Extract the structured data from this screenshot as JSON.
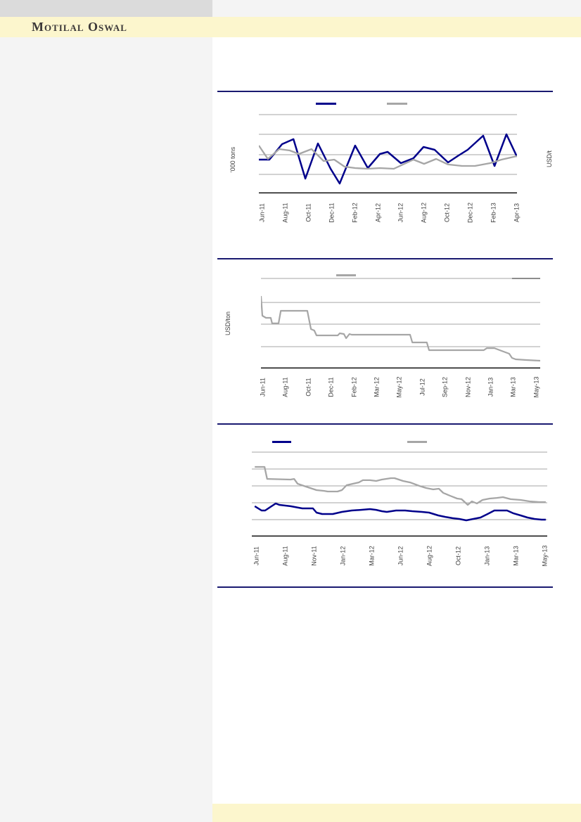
{
  "header": {
    "brand": "Motilal Oswal"
  },
  "colors": {
    "brand_band_yellow": "#fcf6cd",
    "sidebar_gray": "#f4f4f4",
    "top_strip_gray": "#dbdbdb",
    "divider_navy": "#191970",
    "series_navy": "#00008b",
    "series_gray": "#a6a6a6",
    "gridline_gray": "#a6a6a6",
    "axis_black": "#000000",
    "tick_text": "#3f3f3f"
  },
  "chart_data": [
    {
      "type": "line",
      "title": "",
      "ylabel_left": "'000 tons",
      "ylabel_right": "USD/t",
      "ylim": [
        0,
        100
      ],
      "grid": true,
      "legend_position": "top-center",
      "gridlines_pct": [
        97.4,
        73.0,
        47.8,
        23.5
      ],
      "x_labels": [
        "Jun-11",
        "Aug-11",
        "Oct-11",
        "Dec-11",
        "Feb-12",
        "Apr-12",
        "Jun-12",
        "Aug-12",
        "Oct-12",
        "Dec-12",
        "Feb-13",
        "Apr-13"
      ],
      "series": [
        {
          "name": "navy-series",
          "color": "#00008b",
          "width": 2.5,
          "x": [
            0,
            4.1,
            9.0,
            13.4,
            18.0,
            22.9,
            27.8,
            31.3,
            37.3,
            42.2,
            46.9,
            49.9,
            55.0,
            59.9,
            63.8,
            68.1,
            73.3,
            77.4,
            80.9,
            86.9,
            91.3,
            95.9,
            100
          ],
          "values": [
            41.7,
            41.7,
            60.9,
            67.0,
            18.3,
            61.7,
            30.4,
            12.2,
            59.1,
            31.3,
            48.7,
            51.3,
            37.4,
            43.5,
            57.4,
            53.9,
            38.3,
            47.0,
            53.9,
            71.3,
            33.9,
            73.0,
            45.2
          ]
        },
        {
          "name": "gray-series",
          "color": "#a6a6a6",
          "width": 2.3,
          "x": [
            0,
            3.5,
            7.9,
            12.0,
            15.5,
            20.4,
            25.1,
            29.2,
            33.2,
            37.3,
            42.2,
            46.9,
            52.3,
            59.9,
            64.0,
            68.7,
            73.3,
            78.7,
            83.7,
            89.6,
            94.0,
            100
          ],
          "values": [
            59.1,
            42.6,
            54.8,
            53.0,
            48.7,
            54.8,
            40.0,
            41.7,
            33.0,
            31.3,
            30.4,
            31.3,
            30.4,
            41.7,
            36.5,
            42.6,
            35.7,
            33.9,
            33.9,
            37.4,
            41.7,
            46.1
          ]
        }
      ]
    },
    {
      "type": "line",
      "title": "",
      "ylabel_left": "USD/ton",
      "ylabel_right": "",
      "ylim": [
        0,
        100
      ],
      "grid": true,
      "legend_position": "top-center",
      "gridlines_pct": [
        95.5,
        70.1,
        47.0,
        23.1
      ],
      "dark_grid_segment": {
        "pct": 95.5,
        "x_from": 89.9,
        "x_to": 100,
        "color": "#8c8c8c"
      },
      "x_labels": [
        "Jun-11",
        "Aug-11",
        "Oct-11",
        "Dec-11",
        "Feb-12",
        "Mar-12",
        "May-12",
        "Jul-12",
        "Sep-12",
        "Nov-12",
        "Jan-13",
        "Mar-13",
        "May-13"
      ],
      "series": [
        {
          "name": "gray-series",
          "color": "#a6a6a6",
          "width": 2.2,
          "x": [
            0,
            0.5,
            1.8,
            3.5,
            4.0,
            6.3,
            7.1,
            16.6,
            17.9,
            19.1,
            19.9,
            27.5,
            28.2,
            29.7,
            30.5,
            31.7,
            32.5,
            53.4,
            54.2,
            59.4,
            60.2,
            79.8,
            80.9,
            83.6,
            86.1,
            88.9,
            89.9,
            91.2,
            94.5,
            100
          ],
          "values": [
            76.9,
            56.0,
            53.7,
            53.7,
            47.8,
            47.8,
            61.2,
            61.2,
            41.8,
            40.3,
            35.1,
            35.1,
            37.3,
            36.6,
            32.1,
            36.6,
            35.8,
            35.8,
            27.6,
            27.6,
            19.4,
            19.4,
            21.6,
            21.6,
            18.7,
            15.7,
            11.2,
            9.7,
            9.0,
            8.2
          ]
        }
      ]
    },
    {
      "type": "line",
      "title": "",
      "ylabel_left": "",
      "ylabel_right": "",
      "ylim": [
        0,
        100
      ],
      "grid": true,
      "legend_position": "top-center",
      "gridlines_pct": [
        88.9,
        71.1,
        53.3,
        35.6,
        17.8
      ],
      "x_labels": [
        "Jun-11",
        "Aug-11",
        "Nov-11",
        "Jan-12",
        "Mar-12",
        "Jun-12",
        "Aug-12",
        "Oct-12",
        "Jan-13",
        "Mar-13",
        "May-13"
      ],
      "series": [
        {
          "name": "navy-series",
          "color": "#00008b",
          "width": 2.5,
          "x": [
            1.0,
            3.3,
            4.5,
            8.1,
            9.3,
            13.1,
            17.1,
            20.7,
            21.9,
            23.8,
            27.4,
            30.5,
            33.8,
            36.9,
            40.0,
            42.1,
            44.0,
            45.7,
            48.8,
            51.9,
            54.3,
            57.6,
            60.0,
            63.1,
            65.5,
            67.9,
            70.2,
            72.6,
            75.0,
            77.4,
            79.8,
            82.1,
            84.5,
            86.4,
            88.6,
            91.0,
            93.3,
            95.7,
            98.1,
            99.5
          ],
          "values": [
            31.9,
            27.4,
            27.4,
            34.8,
            33.3,
            31.9,
            29.6,
            29.6,
            25.2,
            23.7,
            23.7,
            25.9,
            27.4,
            28.1,
            28.9,
            28.1,
            26.7,
            25.9,
            27.4,
            27.4,
            26.7,
            25.9,
            25.2,
            22.2,
            20.7,
            19.3,
            18.5,
            17.0,
            18.5,
            20.0,
            23.7,
            27.4,
            27.4,
            27.4,
            24.4,
            22.2,
            20.0,
            18.5,
            17.8,
            17.8
          ]
        },
        {
          "name": "gray-series",
          "color": "#a6a6a6",
          "width": 2.3,
          "x": [
            1.0,
            4.3,
            5.2,
            13.1,
            14.3,
            15.5,
            18.3,
            21.9,
            24.5,
            25.7,
            29.0,
            30.5,
            32.1,
            36.2,
            37.6,
            40.0,
            42.1,
            44.0,
            47.1,
            48.3,
            51.2,
            53.6,
            56.7,
            59.0,
            61.4,
            63.3,
            64.8,
            67.1,
            69.5,
            71.0,
            73.1,
            74.5,
            76.2,
            78.1,
            80.5,
            82.9,
            85.0,
            87.6,
            91.0,
            94.0,
            97.1,
            99.5
          ],
          "values": [
            73.3,
            73.3,
            60.7,
            60.0,
            60.7,
            55.6,
            52.6,
            48.9,
            48.1,
            47.4,
            47.4,
            48.9,
            54.1,
            57.0,
            59.3,
            59.3,
            58.5,
            60.0,
            61.5,
            61.5,
            58.5,
            57.0,
            53.3,
            51.1,
            49.6,
            50.4,
            45.9,
            43.0,
            40.0,
            39.3,
            33.3,
            37.0,
            34.8,
            38.5,
            40.0,
            40.7,
            41.5,
            39.3,
            38.5,
            37.0,
            36.3,
            36.3
          ]
        }
      ]
    }
  ]
}
